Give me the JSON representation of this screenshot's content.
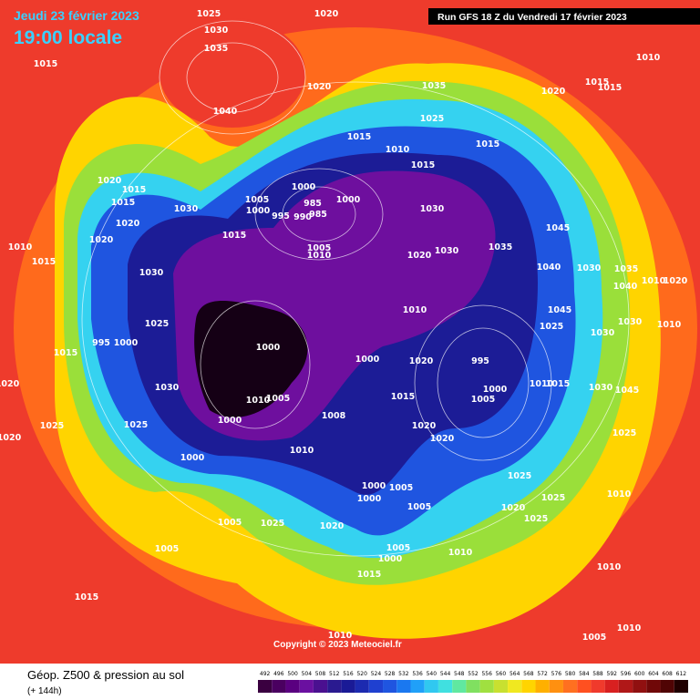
{
  "header": {
    "date": "Jeudi 23 février 2023",
    "time": "19:00 locale",
    "run": "Run GFS 18 Z du Vendredi 17 février 2023"
  },
  "isobar_labels": [
    "1025",
    "1020",
    "1030",
    "1035",
    "1015",
    "1040",
    "1020",
    "1035",
    "1025",
    "1020",
    "1015",
    "1015",
    "1010",
    "1015",
    "1010",
    "1015",
    "1015",
    "1020",
    "1015",
    "1015",
    "1030",
    "1005",
    "1000",
    "995",
    "1000",
    "985",
    "990",
    "985",
    "1000",
    "1030",
    "1020",
    "1015",
    "1020",
    "1010",
    "1015",
    "1005",
    "1010",
    "1020",
    "1030",
    "1035",
    "1045",
    "1040",
    "1030",
    "1035",
    "1030",
    "1040",
    "1010",
    "1020",
    "1010",
    "1045",
    "1025",
    "1025",
    "1030",
    "1010",
    "1030",
    "995",
    "1000",
    "1000",
    "1015",
    "1000",
    "1020",
    "995",
    "1000",
    "1005",
    "1010",
    "1015",
    "1030",
    "1045",
    "1020",
    "1030",
    "1015",
    "1010",
    "1005",
    "1000",
    "1008",
    "1025",
    "1025",
    "1020",
    "1020",
    "1025",
    "1020",
    "1010",
    "1000",
    "1000",
    "1000",
    "1005",
    "1025",
    "1010",
    "1005",
    "1025",
    "1020",
    "1025",
    "1005",
    "1025",
    "1020",
    "1005",
    "1005",
    "1010",
    "1000",
    "1010",
    "1015",
    "1015",
    "1010",
    "1005",
    "1010"
  ],
  "copyright": "Copyright © 2023 Meteociel.fr",
  "footer": {
    "title": "Géop. Z500 & pression au sol",
    "subtitle": "(+ 144h)"
  },
  "scale": {
    "values": [
      492,
      496,
      500,
      504,
      508,
      512,
      516,
      520,
      524,
      528,
      532,
      536,
      540,
      544,
      548,
      552,
      556,
      560,
      564,
      568,
      572,
      576,
      580,
      584,
      588,
      592,
      596,
      600,
      604,
      608,
      612
    ]
  }
}
